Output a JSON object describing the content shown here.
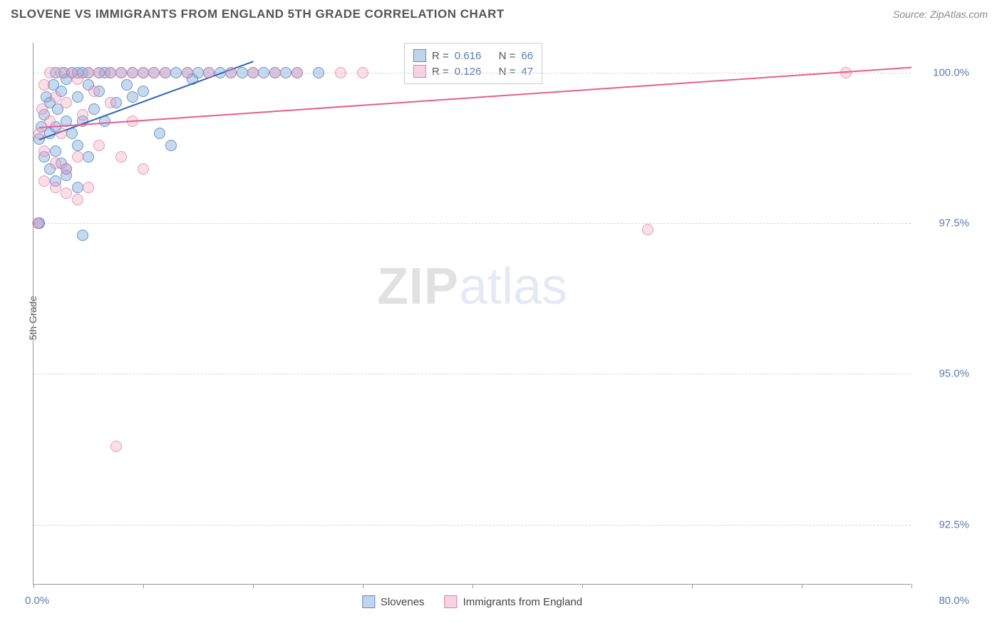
{
  "title": "SLOVENE VS IMMIGRANTS FROM ENGLAND 5TH GRADE CORRELATION CHART",
  "source_label": "Source:",
  "source_name": "ZipAtlas.com",
  "y_axis_label": "5th Grade",
  "watermark_a": "ZIP",
  "watermark_b": "atlas",
  "chart": {
    "type": "scatter",
    "xlim": [
      0,
      80
    ],
    "ylim": [
      91.5,
      100.5
    ],
    "x_ticks": [
      0,
      10,
      20,
      30,
      40,
      50,
      60,
      70,
      80
    ],
    "x_tick_labels_shown": {
      "0": "0.0%",
      "80": "80.0%"
    },
    "y_gridlines": [
      92.5,
      95.0,
      97.5,
      100.0
    ],
    "y_tick_labels": [
      "92.5%",
      "95.0%",
      "97.5%",
      "100.0%"
    ],
    "background_color": "#ffffff",
    "grid_color": "#d8d8d8",
    "axis_color": "#999999",
    "tick_label_color": "#5b7db1",
    "point_radius": 8,
    "series": [
      {
        "name": "Slovenes",
        "color_fill": "rgba(130,170,220,0.45)",
        "color_stroke": "rgba(70,120,190,0.7)",
        "hex": "#6f9fd8",
        "r": 0.616,
        "n": 66,
        "trend": {
          "x1": 0.5,
          "y1": 98.9,
          "x2": 20,
          "y2": 100.2,
          "width": 2,
          "color": "#2e64b5"
        },
        "points": [
          [
            0.5,
            98.9
          ],
          [
            0.5,
            97.5
          ],
          [
            0.7,
            99.1
          ],
          [
            1,
            98.6
          ],
          [
            1,
            99.3
          ],
          [
            1.2,
            99.6
          ],
          [
            1.5,
            99.0
          ],
          [
            1.5,
            99.5
          ],
          [
            1.8,
            99.8
          ],
          [
            2,
            98.7
          ],
          [
            2,
            99.1
          ],
          [
            2,
            100
          ],
          [
            2.2,
            99.4
          ],
          [
            2.5,
            98.5
          ],
          [
            2.5,
            99.7
          ],
          [
            2.8,
            100
          ],
          [
            3,
            98.4
          ],
          [
            3,
            99.2
          ],
          [
            3,
            99.9
          ],
          [
            3.5,
            99.0
          ],
          [
            3.5,
            100
          ],
          [
            4,
            98.8
          ],
          [
            4,
            99.6
          ],
          [
            4,
            100
          ],
          [
            4.5,
            99.2
          ],
          [
            4.5,
            100
          ],
          [
            5,
            98.6
          ],
          [
            5,
            99.8
          ],
          [
            5,
            100
          ],
          [
            5.5,
            99.4
          ],
          [
            6,
            99.7
          ],
          [
            6,
            100
          ],
          [
            6.5,
            99.2
          ],
          [
            6.5,
            100
          ],
          [
            7,
            100
          ],
          [
            7.5,
            99.5
          ],
          [
            8,
            100
          ],
          [
            8.5,
            99.8
          ],
          [
            9,
            100
          ],
          [
            9,
            99.6
          ],
          [
            10,
            100
          ],
          [
            10,
            99.7
          ],
          [
            11,
            100
          ],
          [
            11.5,
            99.0
          ],
          [
            12,
            100
          ],
          [
            12.5,
            98.8
          ],
          [
            13,
            100
          ],
          [
            14,
            100
          ],
          [
            14.5,
            99.9
          ],
          [
            15,
            100
          ],
          [
            16,
            100
          ],
          [
            17,
            100
          ],
          [
            18,
            100
          ],
          [
            19,
            100
          ],
          [
            20,
            100
          ],
          [
            21,
            100
          ],
          [
            22,
            100
          ],
          [
            23,
            100
          ],
          [
            24,
            100
          ],
          [
            26,
            100
          ],
          [
            4.5,
            97.3
          ],
          [
            0.5,
            97.5
          ],
          [
            1.5,
            98.4
          ],
          [
            2,
            98.2
          ],
          [
            3,
            98.3
          ],
          [
            4,
            98.1
          ]
        ]
      },
      {
        "name": "Immigrants from England",
        "color_fill": "rgba(240,160,190,0.35)",
        "color_stroke": "rgba(220,110,150,0.6)",
        "hex": "#e994b5",
        "r": 0.126,
        "n": 47,
        "trend": {
          "x1": 0.5,
          "y1": 99.1,
          "x2": 80,
          "y2": 100.1,
          "width": 2,
          "color": "#e85d90"
        },
        "points": [
          [
            0.5,
            99.0
          ],
          [
            0.8,
            99.4
          ],
          [
            1,
            98.7
          ],
          [
            1,
            99.8
          ],
          [
            1.5,
            99.2
          ],
          [
            1.5,
            100
          ],
          [
            2,
            98.5
          ],
          [
            2,
            99.6
          ],
          [
            2.5,
            99.0
          ],
          [
            2.5,
            100
          ],
          [
            3,
            98.4
          ],
          [
            3,
            99.5
          ],
          [
            3.5,
            100
          ],
          [
            4,
            98.6
          ],
          [
            4,
            99.9
          ],
          [
            4.5,
            99.3
          ],
          [
            5,
            98.1
          ],
          [
            5,
            100
          ],
          [
            5.5,
            99.7
          ],
          [
            6,
            98.8
          ],
          [
            6,
            100
          ],
          [
            7,
            99.5
          ],
          [
            7,
            100
          ],
          [
            8,
            98.6
          ],
          [
            8,
            100
          ],
          [
            9,
            99.2
          ],
          [
            9,
            100
          ],
          [
            10,
            98.4
          ],
          [
            10,
            100
          ],
          [
            11,
            100
          ],
          [
            12,
            100
          ],
          [
            14,
            100
          ],
          [
            16,
            100
          ],
          [
            18,
            100
          ],
          [
            20,
            100
          ],
          [
            22,
            100
          ],
          [
            24,
            100
          ],
          [
            28,
            100
          ],
          [
            30,
            100
          ],
          [
            56,
            97.4
          ],
          [
            74,
            100
          ],
          [
            7.5,
            93.8
          ],
          [
            0.4,
            97.5
          ],
          [
            1,
            98.2
          ],
          [
            2,
            98.1
          ],
          [
            3,
            98.0
          ],
          [
            4,
            97.9
          ]
        ]
      }
    ]
  },
  "stats_box": {
    "rows": [
      {
        "swatch": "blue",
        "r_label": "R =",
        "r_val": "0.616",
        "n_label": "N =",
        "n_val": "66"
      },
      {
        "swatch": "pink",
        "r_label": "R =",
        "r_val": "0.126",
        "n_label": "N =",
        "n_val": "47"
      }
    ]
  },
  "legend": [
    {
      "swatch": "blue",
      "label": "Slovenes"
    },
    {
      "swatch": "pink",
      "label": "Immigrants from England"
    }
  ]
}
